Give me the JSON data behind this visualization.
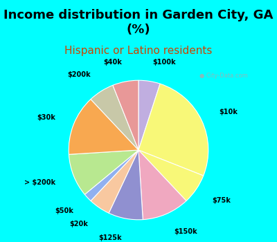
{
  "title": "Income distribution in Garden City, GA\n(%)",
  "subtitle": "Hispanic or Latino residents",
  "fig_bg": "#00FFFF",
  "chart_bg": "#d8f0e4",
  "labels": [
    "$100k",
    "$10k",
    "$75k",
    "$150k",
    "$125k",
    "$20k",
    "$50k",
    "> $200k",
    "$30k",
    "$200k",
    "$40k"
  ],
  "values": [
    5,
    26,
    7,
    11,
    8,
    5,
    2,
    10,
    14,
    6,
    6
  ],
  "colors": [
    "#c0aee0",
    "#f8f878",
    "#f8f878",
    "#f0a8c0",
    "#9090d0",
    "#f8c8a0",
    "#90b0f0",
    "#b8e890",
    "#f8a850",
    "#c8c8a8",
    "#e89898"
  ],
  "startangle": 90,
  "title_fontsize": 13,
  "subtitle_fontsize": 11,
  "watermark": "City-Data.com"
}
